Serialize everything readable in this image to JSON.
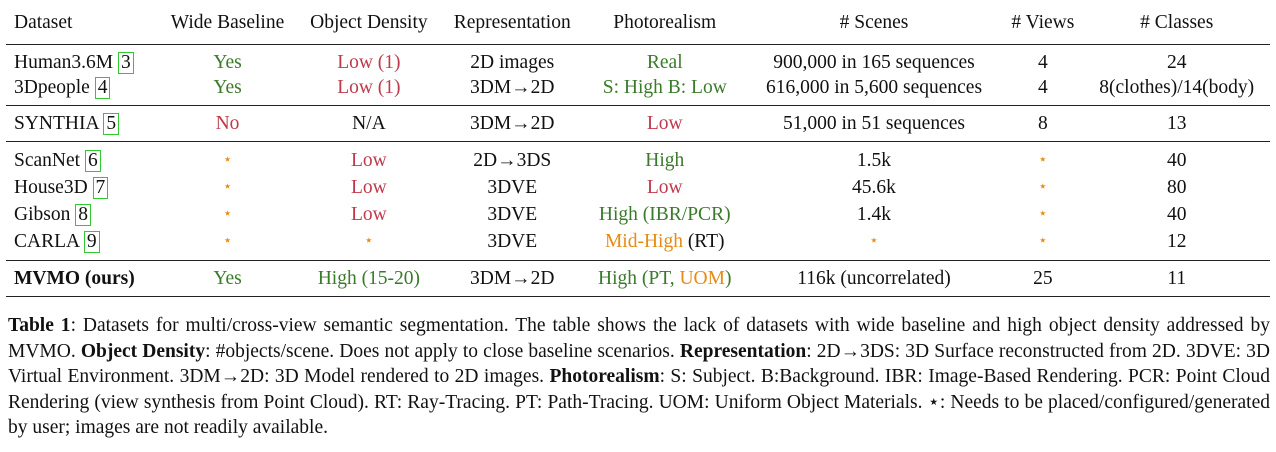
{
  "table": {
    "headers": [
      "Dataset",
      "Wide Baseline",
      "Object Density",
      "Representation",
      "Photorealism",
      "# Scenes",
      "# Views",
      "# Classes"
    ],
    "groups": [
      [
        {
          "name": "Human3.6M",
          "cite": "3",
          "wide": "Yes",
          "density": "Low (1)",
          "rep": "2D images",
          "photo": [
            {
              "t": "Real",
              "c": "green"
            }
          ],
          "scenes": "900,000 in 165 sequences",
          "views": "4",
          "classes": "24"
        },
        {
          "name": "3Dpeople",
          "cite": "4",
          "wide": "Yes",
          "density": "Low (1)",
          "rep": "3DM→2D",
          "photo": [
            {
              "t": "S: High B: Low",
              "c": "green"
            }
          ],
          "scenes": "616,000 in 5,600 sequences",
          "views": "4",
          "classes": "8(clothes)/14(body)"
        }
      ],
      [
        {
          "name": "SYNTHIA",
          "cite": "5",
          "wide": "No",
          "density": "N/A",
          "rep": "3DM→2D",
          "photo": [
            {
              "t": "Low",
              "c": "red"
            }
          ],
          "scenes": "51,000 in 51 sequences",
          "views": "8",
          "classes": "13"
        }
      ],
      [
        {
          "name": "ScanNet",
          "cite": "6",
          "wide": "⋆",
          "density": "Low",
          "rep": "2D→3DS",
          "photo": [
            {
              "t": "High",
              "c": "green"
            }
          ],
          "scenes": "1.5k",
          "views": "⋆",
          "classes": "40"
        },
        {
          "name": "House3D",
          "cite": "7",
          "wide": "⋆",
          "density": "Low",
          "rep": "3DVE",
          "photo": [
            {
              "t": "Low",
              "c": "red"
            }
          ],
          "scenes": "45.6k",
          "views": "⋆",
          "classes": "80"
        },
        {
          "name": "Gibson",
          "cite": "8",
          "wide": "⋆",
          "density": "Low",
          "rep": "3DVE",
          "photo": [
            {
              "t": "High (IBR/PCR)",
              "c": "green"
            }
          ],
          "scenes": "1.4k",
          "views": "⋆",
          "classes": "40"
        },
        {
          "name": "CARLA",
          "cite": "9",
          "wide": "⋆",
          "density": "⋆",
          "rep": "3DVE",
          "photo": [
            {
              "t": "Mid-High",
              "c": "orange"
            },
            {
              "t": " (RT)",
              "c": ""
            }
          ],
          "scenes": "⋆",
          "views": "⋆",
          "classes": "12"
        }
      ],
      [
        {
          "name": "MVMO (ours)",
          "bold": true,
          "wide": "Yes",
          "density": "High (15-20)",
          "density_color": "green",
          "rep": "3DM→2D",
          "photo": [
            {
              "t": "High (PT, ",
              "c": "green"
            },
            {
              "t": "UOM",
              "c": "orange"
            },
            {
              "t": ")",
              "c": "green"
            }
          ],
          "scenes": "116k (uncorrelated)",
          "views": "25",
          "classes": "11"
        }
      ]
    ]
  },
  "caption": {
    "label": "Table 1",
    "parts": [
      {
        "t": ":  Datasets for multi/cross-view semantic segmentation.  The table shows the lack of datasets with wide baseline and high object density addressed by MVMO. "
      },
      {
        "t": "Object Density",
        "b": true
      },
      {
        "t": ": #objects/scene. Does not apply to close baseline scenarios. "
      },
      {
        "t": "Representation",
        "b": true
      },
      {
        "t": ": 2D→3DS: 3D Surface reconstructed from 2D. 3DVE: 3D Virtual Environment. 3DM→2D: 3D Model rendered to 2D images. "
      },
      {
        "t": "Photorealism",
        "b": true
      },
      {
        "t": ": S: Subject. B:Background. IBR: Image-Based Rendering. PCR: Point Cloud Rendering (view synthesis from Point Cloud). RT: Ray-Tracing. PT: Path-Tracing. UOM: Uniform Object Materials. ⋆: Needs to be placed/configured/generated by user; images are not readily available."
      }
    ]
  },
  "colors": {
    "green": "#3a7a2a",
    "red": "#c0394b",
    "orange": "#e88a13",
    "cite_box": "#31c831"
  }
}
